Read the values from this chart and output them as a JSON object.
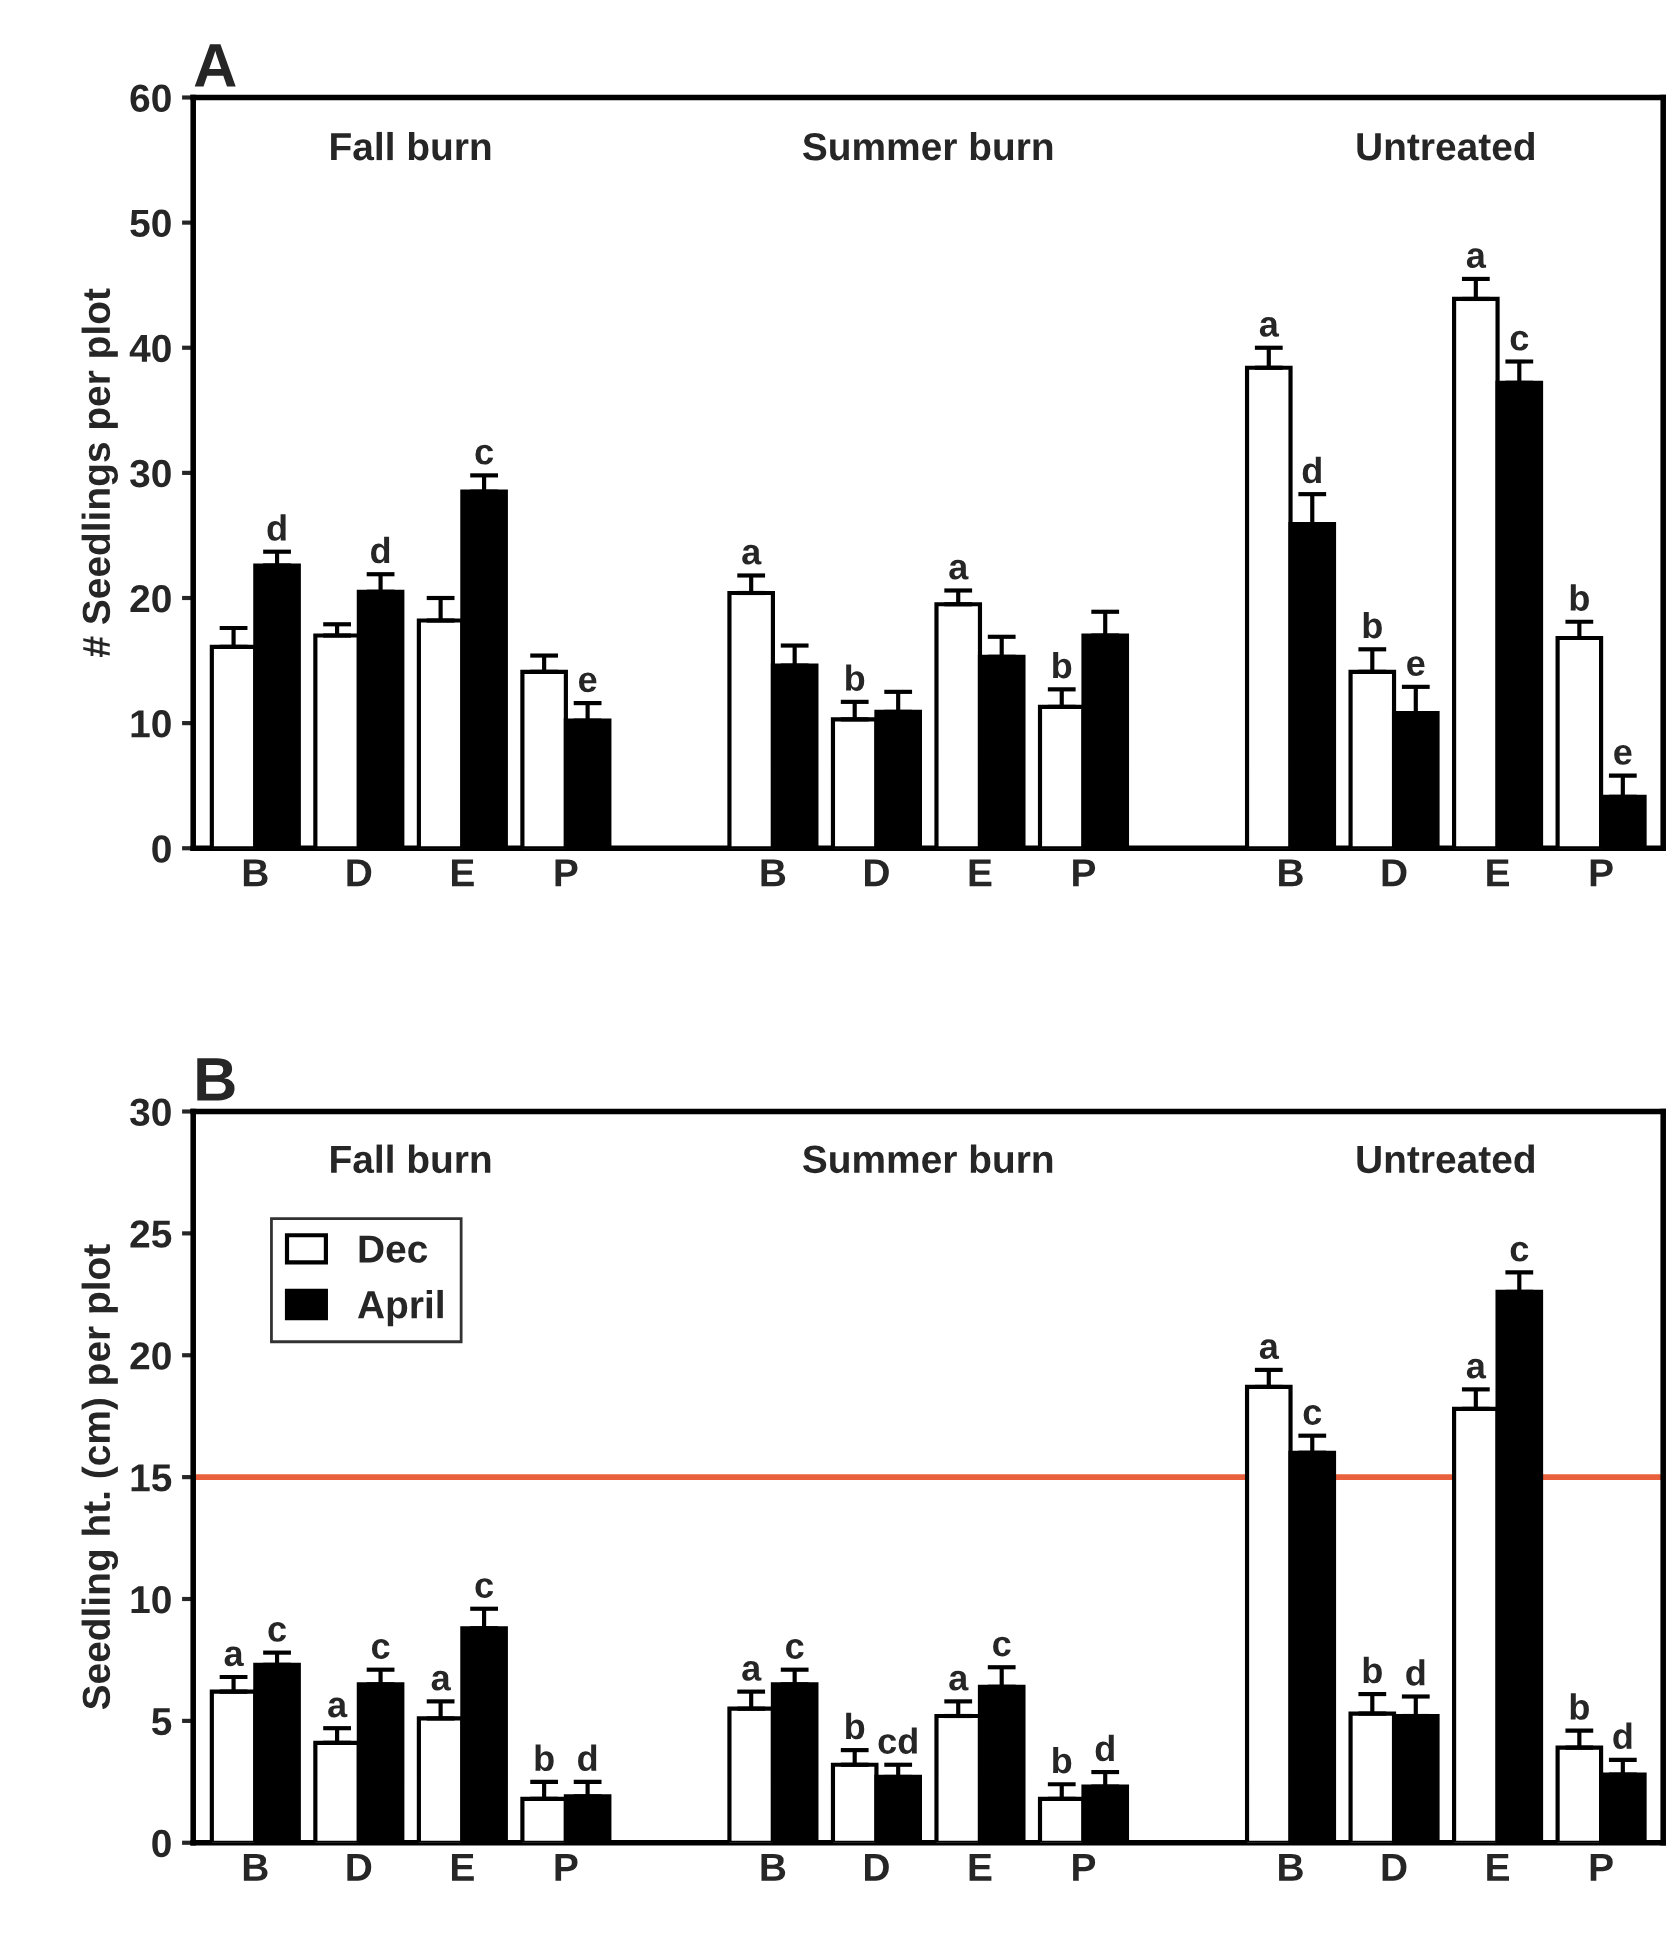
{
  "chart_data": [
    {
      "type": "bar",
      "title": "A",
      "ylabel": "# Seedlings per plot",
      "categories": [
        "B",
        "D",
        "E",
        "P",
        null,
        "B",
        "D",
        "E",
        "P",
        null,
        "B",
        "D",
        "E",
        "P"
      ],
      "ylim": [
        0,
        60
      ],
      "yticks": [
        0,
        10,
        20,
        30,
        40,
        50,
        60
      ],
      "grid": false,
      "legend": false,
      "annotations": [
        "Fall burn",
        "Summer burn",
        "Untreated"
      ],
      "series": [
        {
          "color": "#ffffff",
          "values": [
            16.1,
            17.0,
            18.2,
            14.1,
            null,
            20.4,
            10.3,
            19.5,
            11.3,
            null,
            38.4,
            14.1,
            43.9,
            16.8
          ],
          "errors": [
            [
              16.1,
              17.6
            ],
            [
              17.0,
              17.9
            ],
            [
              18.2,
              20.0
            ],
            [
              14.1,
              15.4
            ],
            null,
            [
              20.4,
              21.8
            ],
            [
              10.3,
              11.7
            ],
            [
              19.5,
              20.6
            ],
            [
              11.3,
              12.7
            ],
            null,
            [
              38.4,
              40.0
            ],
            [
              14.1,
              15.9
            ],
            [
              43.9,
              45.5
            ],
            [
              16.8,
              18.1
            ]
          ],
          "value_labels": [
            null,
            null,
            null,
            null,
            null,
            "a",
            "b",
            "a",
            "b",
            null,
            "a",
            "b",
            "a",
            "b"
          ]
        },
        {
          "color": "#000000",
          "values": [
            22.6,
            20.5,
            28.5,
            10.2,
            null,
            14.6,
            10.9,
            15.3,
            17.0,
            null,
            25.9,
            10.8,
            37.2,
            4.1
          ],
          "errors": [
            [
              22.6,
              23.7
            ],
            [
              20.5,
              21.9
            ],
            [
              28.5,
              29.8
            ],
            [
              10.2,
              11.6
            ],
            null,
            [
              14.6,
              16.2
            ],
            [
              10.9,
              12.5
            ],
            [
              15.3,
              16.9
            ],
            [
              17.0,
              18.9
            ],
            null,
            [
              25.9,
              28.3
            ],
            [
              10.8,
              12.9
            ],
            [
              37.2,
              38.9
            ],
            [
              4.1,
              5.8
            ]
          ],
          "value_labels": [
            "d",
            "d",
            "c",
            "e",
            null,
            null,
            null,
            null,
            null,
            null,
            "d",
            "e",
            "c",
            "e"
          ]
        }
      ]
    },
    {
      "type": "bar",
      "title": "B",
      "ylabel": "Seedling ht. (cm) per plot",
      "categories": [
        "B",
        "D",
        "E",
        "P",
        null,
        "B",
        "D",
        "E",
        "P",
        null,
        "B",
        "D",
        "E",
        "P"
      ],
      "ylim": [
        0,
        30
      ],
      "yticks": [
        0,
        5,
        10,
        15,
        20,
        25,
        30
      ],
      "grid": false,
      "legend": "top left",
      "annotations": [
        "Fall burn",
        "Summer burn",
        "Untreated"
      ],
      "ref_lines": [
        {
          "axis": "y",
          "value": 15,
          "color": "#e8603c"
        }
      ],
      "series": [
        {
          "name": "Dec",
          "color": "#ffffff",
          "values": [
            6.2,
            4.1,
            5.1,
            1.8,
            null,
            5.5,
            3.2,
            5.2,
            1.8,
            null,
            18.7,
            5.3,
            17.8,
            3.9
          ],
          "errors": [
            [
              6.2,
              6.8
            ],
            [
              4.1,
              4.7
            ],
            [
              5.1,
              5.8
            ],
            [
              1.8,
              2.5
            ],
            null,
            [
              5.5,
              6.2
            ],
            [
              3.2,
              3.8
            ],
            [
              5.2,
              5.8
            ],
            [
              1.8,
              2.4
            ],
            null,
            [
              18.7,
              19.4
            ],
            [
              5.3,
              6.1
            ],
            [
              17.8,
              18.6
            ],
            [
              3.9,
              4.6
            ]
          ],
          "value_labels": [
            "a",
            "a",
            "a",
            "b",
            null,
            "a",
            "b",
            "a",
            "b",
            null,
            "a",
            "b",
            "a",
            "b"
          ]
        },
        {
          "name": "April",
          "color": "#000000",
          "values": [
            7.3,
            6.5,
            8.8,
            1.9,
            null,
            6.5,
            2.7,
            6.4,
            2.3,
            null,
            16.0,
            5.2,
            22.6,
            2.8
          ],
          "errors": [
            [
              7.3,
              7.8
            ],
            [
              6.5,
              7.1
            ],
            [
              8.8,
              9.6
            ],
            [
              1.9,
              2.5
            ],
            null,
            [
              6.5,
              7.1
            ],
            [
              2.7,
              3.2
            ],
            [
              6.4,
              7.2
            ],
            [
              2.3,
              2.9
            ],
            null,
            [
              16.0,
              16.7
            ],
            [
              5.2,
              6.0
            ],
            [
              22.6,
              23.4
            ],
            [
              2.8,
              3.4
            ]
          ],
          "value_labels": [
            "c",
            "c",
            "c",
            "d",
            null,
            "c",
            "cd",
            "c",
            "d",
            null,
            "c",
            "d",
            "c",
            "d"
          ]
        }
      ]
    }
  ]
}
